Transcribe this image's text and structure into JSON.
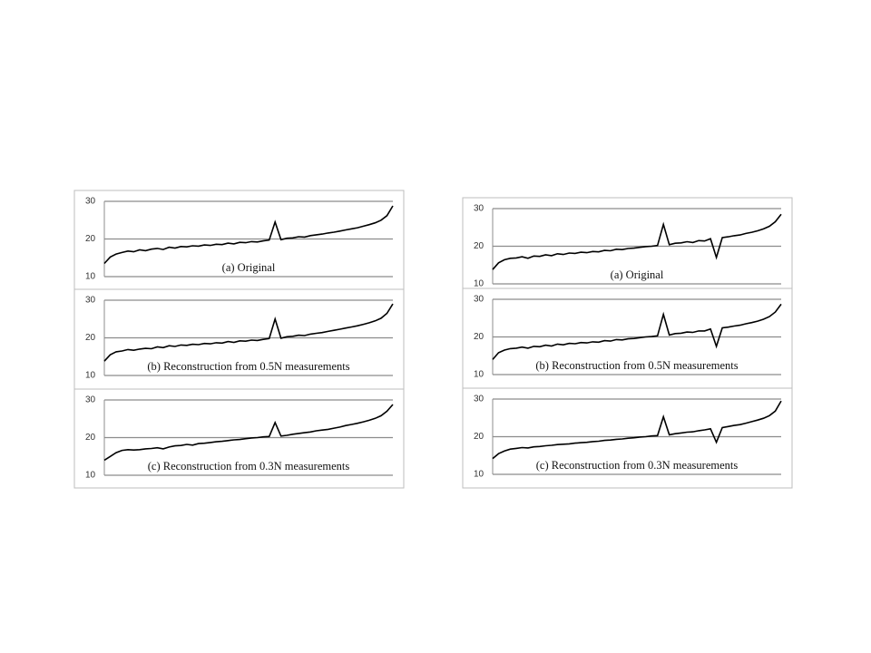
{
  "chart_data": [
    {
      "type": "line",
      "title": "(a) Original",
      "color": "#000000",
      "ylim": [
        10,
        30
      ],
      "yticks": [
        10,
        20,
        30
      ],
      "grid": true,
      "values": [
        13.5,
        15.2,
        16.0,
        16.4,
        16.8,
        16.6,
        17.1,
        16.9,
        17.3,
        17.5,
        17.2,
        17.8,
        17.6,
        18.0,
        17.9,
        18.2,
        18.1,
        18.4,
        18.3,
        18.6,
        18.5,
        18.9,
        18.7,
        19.1,
        19.0,
        19.3,
        19.2,
        19.5,
        19.7,
        24.5,
        19.8,
        20.2,
        20.3,
        20.6,
        20.5,
        20.9,
        21.1,
        21.3,
        21.6,
        21.8,
        22.1,
        22.4,
        22.7,
        23.0,
        23.4,
        23.8,
        24.3,
        25.0,
        26.2,
        28.8
      ]
    },
    {
      "type": "line",
      "title": "(b) Reconstruction from 0.5N measurements",
      "color": "#000000",
      "ylim": [
        10,
        30
      ],
      "yticks": [
        10,
        20,
        30
      ],
      "grid": true,
      "values": [
        13.8,
        15.5,
        16.3,
        16.5,
        16.9,
        16.7,
        17.0,
        17.2,
        17.1,
        17.6,
        17.4,
        17.9,
        17.7,
        18.1,
        18.0,
        18.3,
        18.2,
        18.5,
        18.4,
        18.7,
        18.6,
        19.0,
        18.8,
        19.2,
        19.1,
        19.4,
        19.3,
        19.6,
        19.8,
        25.0,
        19.9,
        20.3,
        20.4,
        20.7,
        20.6,
        21.0,
        21.2,
        21.4,
        21.7,
        22.0,
        22.3,
        22.6,
        22.9,
        23.2,
        23.6,
        24.0,
        24.5,
        25.2,
        26.5,
        29.0
      ]
    },
    {
      "type": "line",
      "title": "(c) Reconstruction from 0.3N measurements",
      "color": "#000000",
      "ylim": [
        10,
        30
      ],
      "yticks": [
        10,
        20,
        30
      ],
      "grid": true,
      "values": [
        14.0,
        15.0,
        16.0,
        16.6,
        16.8,
        16.7,
        16.8,
        17.0,
        17.1,
        17.3,
        17.0,
        17.5,
        17.8,
        17.9,
        18.2,
        18.0,
        18.4,
        18.5,
        18.7,
        18.9,
        19.0,
        19.2,
        19.4,
        19.5,
        19.7,
        19.9,
        20.0,
        20.2,
        20.3,
        24.0,
        20.4,
        20.6,
        20.9,
        21.1,
        21.3,
        21.5,
        21.8,
        22.0,
        22.2,
        22.5,
        22.8,
        23.2,
        23.5,
        23.8,
        24.2,
        24.6,
        25.1,
        25.8,
        27.0,
        28.8
      ]
    },
    {
      "type": "line",
      "title": "(a) Original",
      "color": "#000000",
      "ylim": [
        10,
        30
      ],
      "yticks": [
        10,
        20,
        30
      ],
      "grid": true,
      "values": [
        13.8,
        15.6,
        16.4,
        16.8,
        16.9,
        17.2,
        16.8,
        17.4,
        17.3,
        17.7,
        17.5,
        18.0,
        17.8,
        18.2,
        18.1,
        18.4,
        18.3,
        18.6,
        18.5,
        18.9,
        18.8,
        19.2,
        19.1,
        19.4,
        19.5,
        19.7,
        19.9,
        20.0,
        20.2,
        25.8,
        20.4,
        20.8,
        20.9,
        21.2,
        21.0,
        21.5,
        21.4,
        22.0,
        17.0,
        22.3,
        22.5,
        22.8,
        23.0,
        23.4,
        23.7,
        24.1,
        24.6,
        25.3,
        26.5,
        28.5
      ]
    },
    {
      "type": "line",
      "title": "(b) Reconstruction from 0.5N measurements",
      "color": "#000000",
      "ylim": [
        10,
        30
      ],
      "yticks": [
        10,
        20,
        30
      ],
      "grid": true,
      "values": [
        14.0,
        15.8,
        16.5,
        16.9,
        17.0,
        17.3,
        17.0,
        17.5,
        17.4,
        17.8,
        17.6,
        18.1,
        17.9,
        18.3,
        18.2,
        18.5,
        18.4,
        18.7,
        18.6,
        19.0,
        18.9,
        19.3,
        19.2,
        19.5,
        19.6,
        19.8,
        20.0,
        20.1,
        20.3,
        26.0,
        20.5,
        20.9,
        21.0,
        21.3,
        21.2,
        21.6,
        21.6,
        22.1,
        17.5,
        22.4,
        22.6,
        22.9,
        23.1,
        23.5,
        23.8,
        24.2,
        24.7,
        25.4,
        26.6,
        28.7
      ]
    },
    {
      "type": "line",
      "title": "(c) Reconstruction from 0.3N measurements",
      "color": "#000000",
      "ylim": [
        10,
        30
      ],
      "yticks": [
        10,
        20,
        30
      ],
      "grid": true,
      "values": [
        14.2,
        15.5,
        16.2,
        16.7,
        16.9,
        17.1,
        17.0,
        17.3,
        17.4,
        17.6,
        17.7,
        17.9,
        18.0,
        18.1,
        18.3,
        18.4,
        18.5,
        18.7,
        18.8,
        19.0,
        19.1,
        19.3,
        19.4,
        19.6,
        19.7,
        19.9,
        20.0,
        20.2,
        20.3,
        25.3,
        20.5,
        20.8,
        21.0,
        21.2,
        21.3,
        21.6,
        21.8,
        22.1,
        18.5,
        22.4,
        22.7,
        23.0,
        23.2,
        23.6,
        24.0,
        24.4,
        24.9,
        25.6,
        26.8,
        29.5
      ]
    }
  ]
}
